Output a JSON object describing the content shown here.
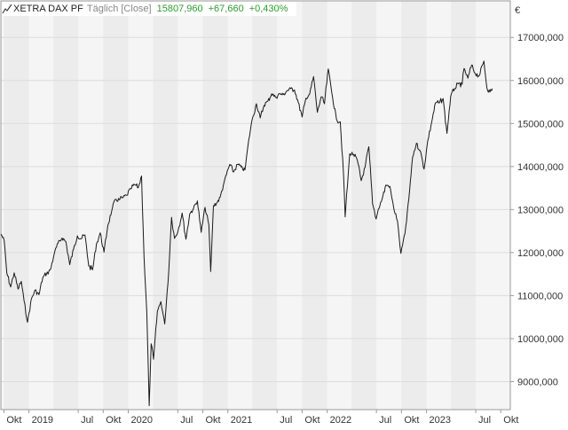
{
  "header": {
    "instrument": "XETRA DAX PF",
    "mode": "Täglich [Close]",
    "close": "15807,960",
    "change": "+67,660",
    "change_pct": "+0,430%",
    "change_color": "#2e9e2e"
  },
  "currency": "€",
  "colors": {
    "line": "#1a1a1a",
    "band_a": "#ececec",
    "band_b": "#f5f5f5",
    "grid": "#dcdcdc",
    "axis_text": "#333333"
  },
  "chart_data": {
    "type": "line",
    "title": "XETRA DAX PF",
    "subtitle": "Täglich [Close]",
    "x_range": [
      "2018-09-20",
      "2023-11-05"
    ],
    "ylim": [
      8350,
      17850
    ],
    "y_ticks": [
      9000,
      10000,
      11000,
      12000,
      13000,
      14000,
      15000,
      16000,
      17000
    ],
    "y_tick_labels": [
      "9000,000",
      "10000,000",
      "11000,000",
      "12000,000",
      "13000,000",
      "14000,000",
      "15000,000",
      "16000,000",
      "17000,000"
    ],
    "x_ticks": [
      {
        "date": "2018-10-01",
        "label": "Okt"
      },
      {
        "date": "2019-01-01",
        "label": "2019"
      },
      {
        "date": "2019-07-01",
        "label": "Jul"
      },
      {
        "date": "2019-10-01",
        "label": "Okt"
      },
      {
        "date": "2020-01-01",
        "label": "2020"
      },
      {
        "date": "2020-07-01",
        "label": "Jul"
      },
      {
        "date": "2020-10-01",
        "label": "Okt"
      },
      {
        "date": "2021-01-01",
        "label": "2021"
      },
      {
        "date": "2021-07-01",
        "label": "Jul"
      },
      {
        "date": "2021-10-01",
        "label": "Okt"
      },
      {
        "date": "2022-01-01",
        "label": "2022"
      },
      {
        "date": "2022-07-01",
        "label": "Jul"
      },
      {
        "date": "2022-10-01",
        "label": "Okt"
      },
      {
        "date": "2023-01-01",
        "label": "2023"
      },
      {
        "date": "2023-07-01",
        "label": "Jul"
      },
      {
        "date": "2023-10-01",
        "label": "Okt"
      }
    ],
    "bands": [
      {
        "from": "2018-10-01",
        "to": "2019-01-01"
      },
      {
        "from": "2019-04-01",
        "to": "2019-07-01"
      },
      {
        "from": "2019-10-01",
        "to": "2020-01-01"
      },
      {
        "from": "2020-04-01",
        "to": "2020-07-01"
      },
      {
        "from": "2020-10-01",
        "to": "2021-01-01"
      },
      {
        "from": "2021-04-01",
        "to": "2021-07-01"
      },
      {
        "from": "2021-10-01",
        "to": "2022-01-01"
      },
      {
        "from": "2022-04-01",
        "to": "2022-07-01"
      },
      {
        "from": "2022-10-01",
        "to": "2023-01-01"
      },
      {
        "from": "2023-04-01",
        "to": "2023-07-01"
      }
    ],
    "grid": true,
    "series": [
      {
        "points": [
          [
            "2018-09-21",
            12430
          ],
          [
            "2018-10-02",
            12280
          ],
          [
            "2018-10-12",
            11520
          ],
          [
            "2018-10-26",
            11200
          ],
          [
            "2018-11-08",
            11530
          ],
          [
            "2018-11-22",
            11150
          ],
          [
            "2018-12-04",
            11330
          ],
          [
            "2018-12-14",
            10880
          ],
          [
            "2018-12-27",
            10380
          ],
          [
            "2019-01-10",
            10920
          ],
          [
            "2019-01-24",
            11130
          ],
          [
            "2019-02-07",
            11020
          ],
          [
            "2019-02-21",
            11420
          ],
          [
            "2019-03-07",
            11510
          ],
          [
            "2019-03-21",
            11600
          ],
          [
            "2019-04-04",
            11970
          ],
          [
            "2019-04-18",
            12220
          ],
          [
            "2019-05-03",
            12340
          ],
          [
            "2019-05-17",
            12250
          ],
          [
            "2019-05-31",
            11720
          ],
          [
            "2019-06-14",
            12080
          ],
          [
            "2019-06-28",
            12390
          ],
          [
            "2019-07-12",
            12320
          ],
          [
            "2019-07-26",
            12410
          ],
          [
            "2019-08-09",
            11690
          ],
          [
            "2019-08-23",
            11600
          ],
          [
            "2019-09-06",
            12190
          ],
          [
            "2019-09-20",
            12460
          ],
          [
            "2019-10-04",
            12010
          ],
          [
            "2019-10-18",
            12630
          ],
          [
            "2019-11-01",
            12960
          ],
          [
            "2019-11-15",
            13240
          ],
          [
            "2019-11-29",
            13230
          ],
          [
            "2019-12-13",
            13280
          ],
          [
            "2019-12-27",
            13330
          ],
          [
            "2020-01-10",
            13480
          ],
          [
            "2020-01-24",
            13580
          ],
          [
            "2020-02-07",
            13510
          ],
          [
            "2020-02-19",
            13780
          ],
          [
            "2020-02-28",
            11900
          ],
          [
            "2020-03-09",
            10620
          ],
          [
            "2020-03-18",
            8440
          ],
          [
            "2020-03-25",
            9880
          ],
          [
            "2020-04-03",
            9520
          ],
          [
            "2020-04-17",
            10630
          ],
          [
            "2020-04-30",
            10860
          ],
          [
            "2020-05-14",
            10340
          ],
          [
            "2020-05-29",
            11580
          ],
          [
            "2020-06-08",
            12820
          ],
          [
            "2020-06-19",
            12330
          ],
          [
            "2020-07-03",
            12530
          ],
          [
            "2020-07-17",
            12920
          ],
          [
            "2020-07-31",
            12310
          ],
          [
            "2020-08-14",
            12900
          ],
          [
            "2020-08-28",
            13030
          ],
          [
            "2020-09-11",
            13200
          ],
          [
            "2020-09-25",
            12470
          ],
          [
            "2020-10-09",
            13050
          ],
          [
            "2020-10-23",
            12650
          ],
          [
            "2020-10-30",
            11560
          ],
          [
            "2020-11-09",
            13090
          ],
          [
            "2020-11-20",
            13140
          ],
          [
            "2020-12-04",
            13290
          ],
          [
            "2020-12-18",
            13630
          ],
          [
            "2021-01-08",
            14050
          ],
          [
            "2021-01-22",
            13870
          ],
          [
            "2021-02-05",
            14050
          ],
          [
            "2021-02-19",
            13990
          ],
          [
            "2021-03-05",
            13920
          ],
          [
            "2021-03-19",
            14620
          ],
          [
            "2021-04-01",
            15110
          ],
          [
            "2021-04-16",
            15460
          ],
          [
            "2021-04-30",
            15130
          ],
          [
            "2021-05-14",
            15420
          ],
          [
            "2021-05-28",
            15520
          ],
          [
            "2021-06-11",
            15690
          ],
          [
            "2021-06-25",
            15610
          ],
          [
            "2021-07-09",
            15690
          ],
          [
            "2021-07-23",
            15670
          ],
          [
            "2021-08-06",
            15760
          ],
          [
            "2021-08-20",
            15810
          ],
          [
            "2021-09-03",
            15780
          ],
          [
            "2021-09-17",
            15490
          ],
          [
            "2021-10-01",
            15150
          ],
          [
            "2021-10-15",
            15590
          ],
          [
            "2021-10-29",
            15690
          ],
          [
            "2021-11-12",
            16090
          ],
          [
            "2021-11-26",
            15260
          ],
          [
            "2021-12-10",
            15620
          ],
          [
            "2021-12-22",
            15460
          ],
          [
            "2022-01-05",
            16270
          ],
          [
            "2022-01-21",
            15600
          ],
          [
            "2022-02-04",
            15100
          ],
          [
            "2022-02-18",
            15040
          ],
          [
            "2022-03-02",
            13850
          ],
          [
            "2022-03-08",
            12830
          ],
          [
            "2022-03-25",
            14300
          ],
          [
            "2022-04-08",
            14280
          ],
          [
            "2022-04-22",
            14140
          ],
          [
            "2022-05-06",
            13670
          ],
          [
            "2022-05-20",
            13980
          ],
          [
            "2022-06-03",
            14460
          ],
          [
            "2022-06-17",
            13130
          ],
          [
            "2022-06-30",
            12780
          ],
          [
            "2022-07-08",
            13010
          ],
          [
            "2022-07-22",
            13250
          ],
          [
            "2022-08-05",
            13570
          ],
          [
            "2022-08-19",
            13540
          ],
          [
            "2022-09-02",
            13050
          ],
          [
            "2022-09-16",
            12740
          ],
          [
            "2022-09-29",
            11980
          ],
          [
            "2022-10-14",
            12440
          ],
          [
            "2022-10-28",
            13240
          ],
          [
            "2022-11-11",
            14220
          ],
          [
            "2022-11-25",
            14540
          ],
          [
            "2022-12-09",
            14370
          ],
          [
            "2022-12-23",
            13940
          ],
          [
            "2023-01-06",
            14610
          ],
          [
            "2023-01-20",
            15030
          ],
          [
            "2023-02-03",
            15480
          ],
          [
            "2023-02-17",
            15480
          ],
          [
            "2023-03-03",
            15580
          ],
          [
            "2023-03-17",
            14770
          ],
          [
            "2023-03-31",
            15630
          ],
          [
            "2023-04-14",
            15810
          ],
          [
            "2023-04-28",
            15920
          ],
          [
            "2023-05-12",
            15910
          ],
          [
            "2023-05-19",
            16280
          ],
          [
            "2023-06-02",
            16050
          ],
          [
            "2023-06-16",
            16360
          ],
          [
            "2023-06-30",
            16150
          ],
          [
            "2023-07-14",
            16110
          ],
          [
            "2023-07-31",
            16450
          ],
          [
            "2023-08-11",
            15830
          ],
          [
            "2023-08-22",
            15730
          ],
          [
            "2023-08-31",
            15810
          ]
        ]
      }
    ]
  }
}
